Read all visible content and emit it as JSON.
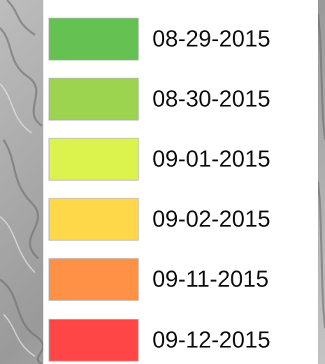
{
  "legend": {
    "items": [
      {
        "label": "08-29-2015",
        "color": "#64c152"
      },
      {
        "label": "08-30-2015",
        "color": "#9dd44f"
      },
      {
        "label": "09-01-2015",
        "color": "#dcf34e"
      },
      {
        "label": "09-02-2015",
        "color": "#ffd84a"
      },
      {
        "label": "09-11-2015",
        "color": "#ff9146"
      },
      {
        "label": "09-12-2015",
        "color": "#ff4646"
      }
    ]
  }
}
